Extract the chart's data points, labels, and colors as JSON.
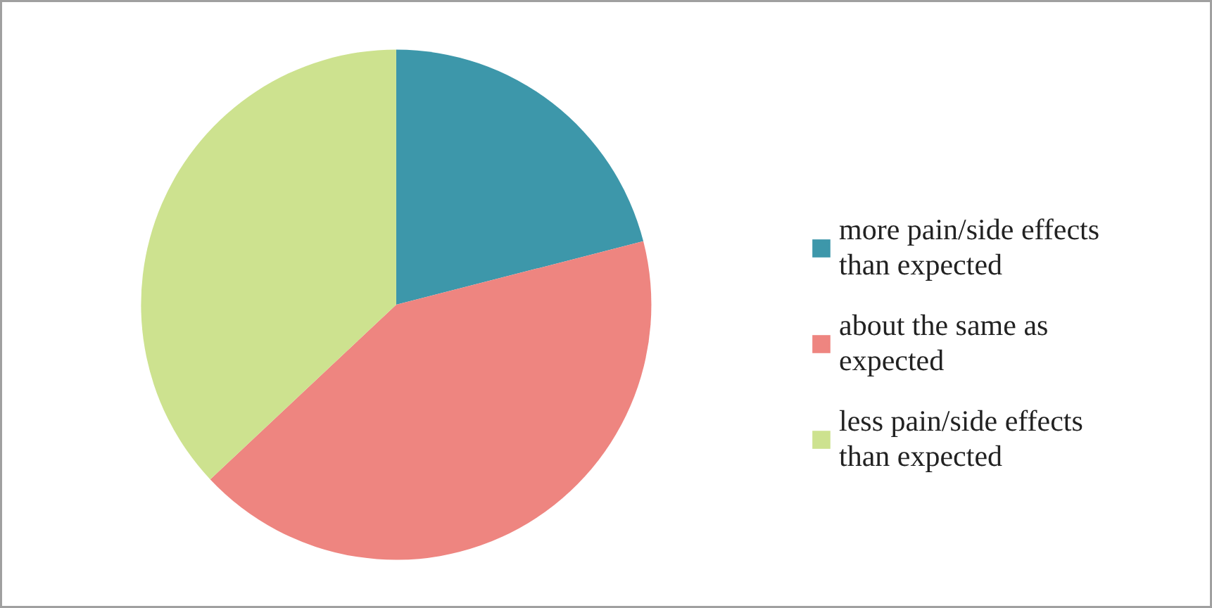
{
  "chart_data": {
    "type": "pie",
    "categories": [
      "more pain/side effects than expected",
      "about the same as expected",
      "less pain/side effects than expected"
    ],
    "values": [
      21,
      42,
      37
    ],
    "colors": [
      "#3d97aa",
      "#ee8580",
      "#cde28f"
    ],
    "legend": "right"
  }
}
